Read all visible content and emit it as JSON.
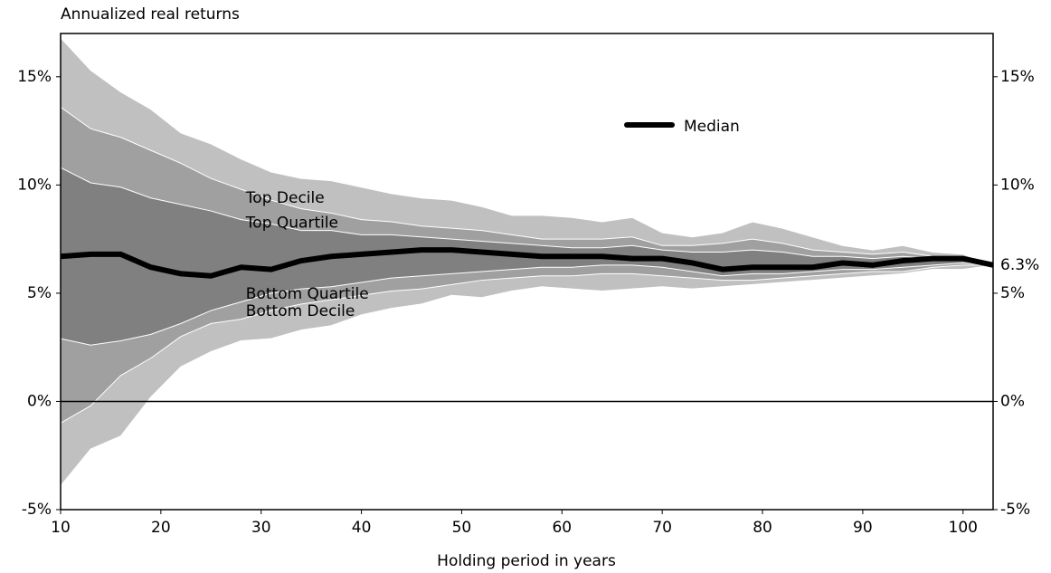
{
  "chart_data": {
    "type": "fan",
    "y_label": "Annualized real returns",
    "x_label": "Holding period in years",
    "x": [
      10,
      13,
      16,
      19,
      22,
      25,
      28,
      31,
      34,
      37,
      40,
      43,
      46,
      49,
      52,
      55,
      58,
      61,
      64,
      67,
      70,
      73,
      76,
      79,
      82,
      85,
      88,
      91,
      94,
      97,
      100,
      103
    ],
    "range": {
      "color": "#c0c0c0",
      "upper": [
        16.8,
        15.3,
        14.3,
        13.5,
        12.4,
        11.9,
        11.2,
        10.6,
        10.3,
        10.2,
        9.9,
        9.6,
        9.4,
        9.3,
        9.0,
        8.6,
        8.6,
        8.5,
        8.3,
        8.5,
        7.8,
        7.6,
        7.8,
        8.3,
        8.0,
        7.6,
        7.2,
        7.0,
        7.2,
        6.9,
        6.8,
        6.3
      ],
      "lower": [
        -3.9,
        -2.2,
        -1.6,
        0.2,
        1.6,
        2.3,
        2.8,
        2.9,
        3.3,
        3.5,
        4.0,
        4.3,
        4.5,
        4.9,
        4.8,
        5.1,
        5.3,
        5.2,
        5.1,
        5.2,
        5.3,
        5.2,
        5.3,
        5.4,
        5.5,
        5.6,
        5.7,
        5.8,
        5.9,
        6.1,
        6.1,
        6.3
      ]
    },
    "series": [
      {
        "name": "Top Decile",
        "color": "#a0a0a0",
        "values": [
          13.6,
          12.6,
          12.2,
          11.6,
          11.0,
          10.3,
          9.8,
          9.3,
          8.9,
          8.7,
          8.4,
          8.3,
          8.1,
          8.0,
          7.9,
          7.7,
          7.5,
          7.5,
          7.5,
          7.6,
          7.2,
          7.2,
          7.3,
          7.5,
          7.3,
          7.0,
          6.9,
          6.8,
          6.9,
          6.7,
          6.7,
          6.3
        ]
      },
      {
        "name": "Top Quartile",
        "color": "#808080",
        "values": [
          10.8,
          10.1,
          9.9,
          9.4,
          9.1,
          8.8,
          8.4,
          8.2,
          7.9,
          7.9,
          7.7,
          7.7,
          7.6,
          7.5,
          7.4,
          7.3,
          7.2,
          7.1,
          7.1,
          7.2,
          7.0,
          6.9,
          6.9,
          7.0,
          6.9,
          6.7,
          6.7,
          6.6,
          6.7,
          6.6,
          6.6,
          6.3
        ]
      },
      {
        "name": "Median",
        "color": "#000000",
        "values": [
          6.7,
          6.8,
          6.8,
          6.2,
          5.9,
          5.8,
          6.2,
          6.1,
          6.5,
          6.7,
          6.8,
          6.9,
          7.0,
          7.0,
          6.9,
          6.8,
          6.7,
          6.7,
          6.7,
          6.6,
          6.6,
          6.4,
          6.1,
          6.2,
          6.2,
          6.2,
          6.4,
          6.3,
          6.5,
          6.6,
          6.6,
          6.3
        ]
      },
      {
        "name": "Bottom Quartile",
        "color": "#a0a0a0",
        "values": [
          2.9,
          2.6,
          2.8,
          3.1,
          3.6,
          4.2,
          4.6,
          5.0,
          5.2,
          5.3,
          5.5,
          5.7,
          5.8,
          5.9,
          6.0,
          6.1,
          6.2,
          6.2,
          6.3,
          6.3,
          6.2,
          6.0,
          5.8,
          5.9,
          5.9,
          6.0,
          6.1,
          6.1,
          6.2,
          6.3,
          6.4,
          6.3
        ]
      },
      {
        "name": "Bottom Decile",
        "color": "#c0c0c0",
        "values": [
          -1.0,
          -0.2,
          1.2,
          2.0,
          3.0,
          3.6,
          3.8,
          4.2,
          4.5,
          4.7,
          4.9,
          5.1,
          5.2,
          5.4,
          5.6,
          5.7,
          5.8,
          5.8,
          5.9,
          5.9,
          5.8,
          5.7,
          5.6,
          5.6,
          5.7,
          5.8,
          5.9,
          6.0,
          6.0,
          6.2,
          6.3,
          6.3
        ]
      }
    ],
    "annotation": {
      "value": 6.3,
      "label": "6.3%"
    },
    "xlim": [
      10,
      103
    ],
    "ylim": [
      -5,
      17
    ],
    "y2lim": [
      -5,
      17
    ],
    "xticks": [
      10,
      20,
      30,
      40,
      50,
      60,
      70,
      80,
      90,
      100
    ],
    "yticks": [
      {
        "value": -5,
        "label": "-5%"
      },
      {
        "value": 0,
        "label": "0%"
      },
      {
        "value": 5,
        "label": "5%"
      },
      {
        "value": 10,
        "label": "10%"
      },
      {
        "value": 15,
        "label": "15%"
      }
    ],
    "y2ticks": [
      {
        "value": -5,
        "label": "-5%"
      },
      {
        "value": 0,
        "label": "0%"
      },
      {
        "value": 5,
        "label": "5%"
      },
      {
        "value": 10,
        "label": "10%"
      },
      {
        "value": 15,
        "label": "15%"
      }
    ]
  }
}
